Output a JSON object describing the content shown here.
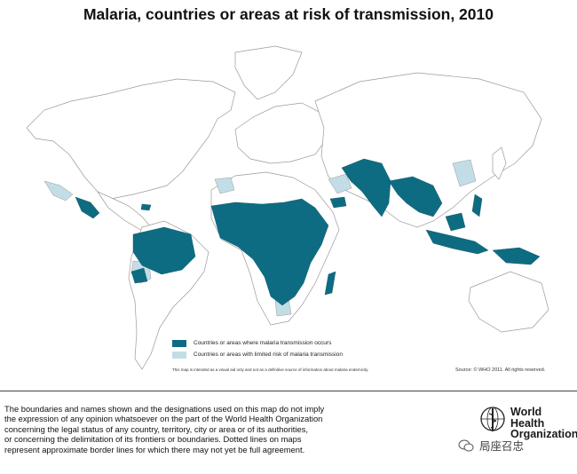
{
  "title": "Malaria, countries or areas at risk of transmission, 2010",
  "legend": {
    "items": [
      {
        "label": "Countries or areas where malaria transmission occurs",
        "color": "#0e6c82"
      },
      {
        "label": "Countries or areas with limited risk of malaria transmission",
        "color": "#c3dde6"
      }
    ]
  },
  "map_note": "This map is intended as a visual aid only and not as a definitive source of information about malaria endemicity.",
  "source": "Source: © WHO 2011. All rights reserved.",
  "disclaimer": {
    "lines": [
      "The boundaries and names shown and the designations used on this map do not imply",
      "the expression of any opinion whatsoever on the part of the World Health Organization",
      "concerning the legal status of any country, territory, city or area or of its authorities,",
      "or concerning the delimitation of its frontiers or boundaries.  Dotted lines on maps",
      "represent approximate border lines for which there may not yet be full agreement."
    ]
  },
  "organization": {
    "line1": "World Health",
    "line2": "Organization"
  },
  "watermark": "局座召忠",
  "colors": {
    "land": "#ffffff",
    "border": "#9a9a9a",
    "high_risk": "#0e6c82",
    "limited_risk": "#c3dde6"
  }
}
